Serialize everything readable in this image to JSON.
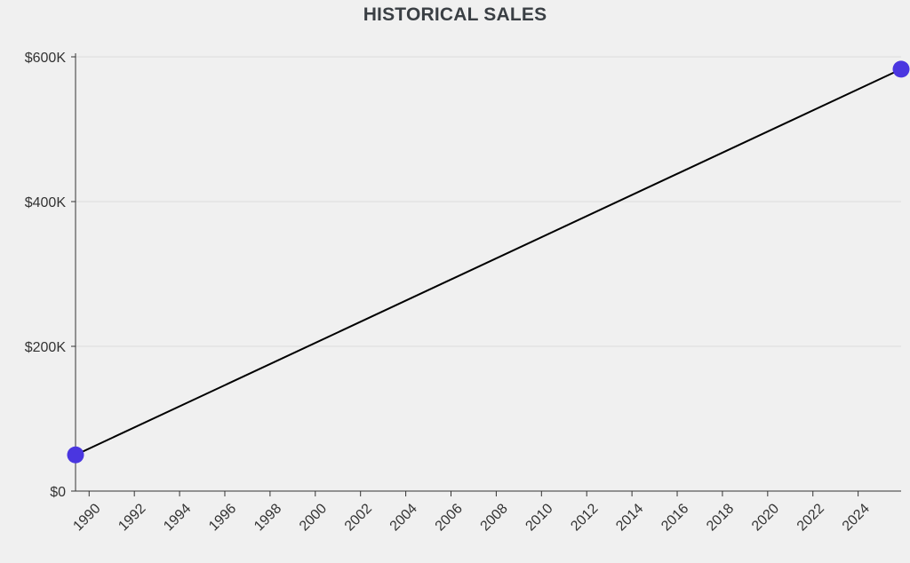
{
  "chart_data": {
    "type": "line",
    "title": "HISTORICAL SALES",
    "xlabel": "",
    "ylabel": "",
    "x": [
      1989.4,
      2025.9
    ],
    "series": [
      {
        "values": [
          50000,
          583000
        ]
      }
    ],
    "xlim": [
      1989.4,
      2025.9
    ],
    "ylim": [
      0,
      600000
    ],
    "x_ticks": [
      "1990",
      "1992",
      "1994",
      "1996",
      "1998",
      "2000",
      "2002",
      "2004",
      "2006",
      "2008",
      "2010",
      "2012",
      "2014",
      "2016",
      "2018",
      "2020",
      "2022",
      "2024"
    ],
    "y_ticks": [
      0,
      200000,
      400000,
      600000
    ],
    "y_tick_labels": [
      "$0",
      "$200K",
      "$400K",
      "$600K"
    ],
    "grid": "horizontal",
    "legend": "none",
    "colors": {
      "line": "#000000",
      "marker": "#4a36e0",
      "grid": "#dcdcdc",
      "axis": "#333333"
    }
  }
}
